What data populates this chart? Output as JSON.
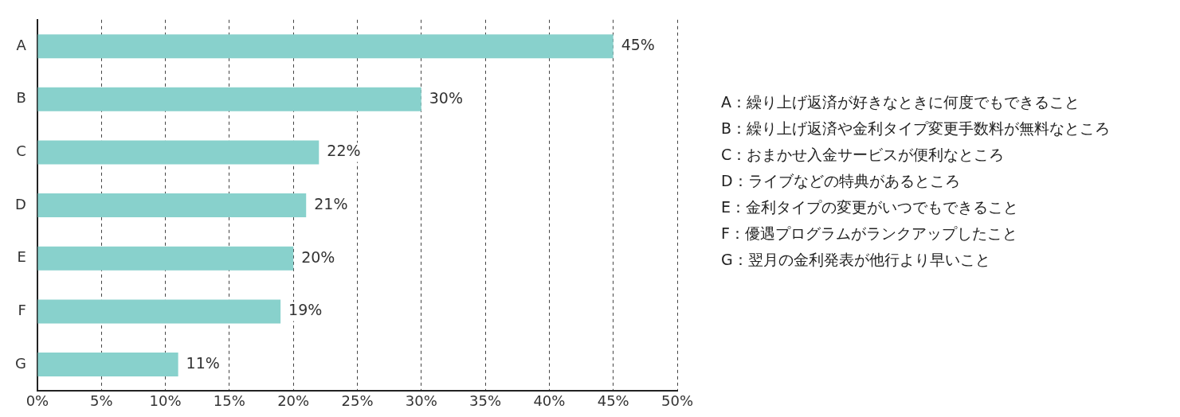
{
  "chart_data": {
    "type": "bar",
    "orientation": "horizontal",
    "categories": [
      "A",
      "B",
      "C",
      "D",
      "E",
      "F",
      "G"
    ],
    "values": [
      45,
      30,
      22,
      21,
      20,
      19,
      11
    ],
    "value_labels": [
      "45%",
      "30%",
      "22%",
      "21%",
      "20%",
      "19%",
      "11%"
    ],
    "color": "#88d1cc",
    "xlim": [
      0,
      50
    ],
    "xticks": [
      {
        "value": 0,
        "label": "0%"
      },
      {
        "value": 5,
        "label": "5%"
      },
      {
        "value": 10,
        "label": "10%"
      },
      {
        "value": 15,
        "label": "15%"
      },
      {
        "value": 20,
        "label": "20%"
      },
      {
        "value": 25,
        "label": "25%"
      },
      {
        "value": 30,
        "label": "30%"
      },
      {
        "value": 35,
        "label": "35%"
      },
      {
        "value": 40,
        "label": "40%"
      },
      {
        "value": 45,
        "label": "45%"
      },
      {
        "value": 50,
        "label": "50%"
      }
    ],
    "grid": "x",
    "annotations": [
      "A：繰り上げ返済が好きなときに何度でもできること",
      "B：繰り上げ返済や金利タイプ変更手数料が無料なところ",
      "C：おまかせ入金サービスが便利なところ",
      "D：ライブなどの特典があるところ",
      "E：金利タイプの変更がいつでもできること",
      "F：優遇プログラムがランクアップしたこと",
      "G：翌月の金利発表が他行より早いこと"
    ]
  }
}
